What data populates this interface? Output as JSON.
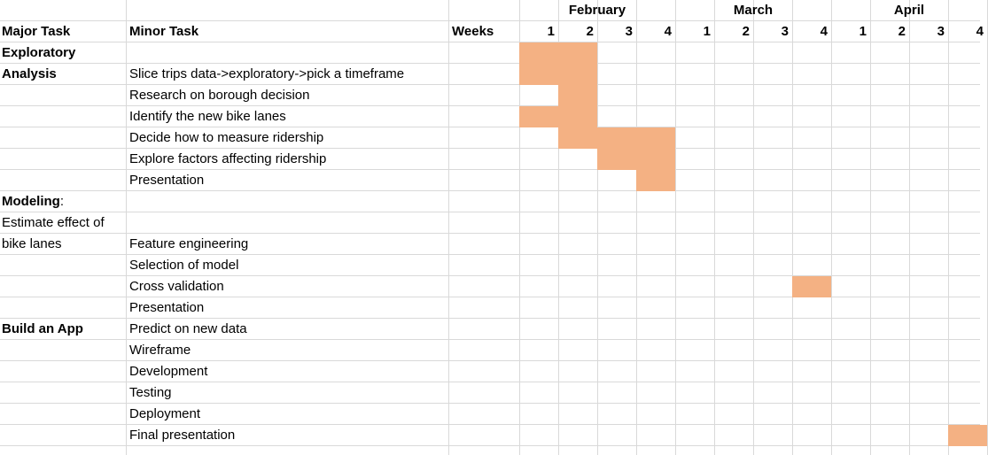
{
  "headers": {
    "major_task": "Major Task",
    "minor_task": "Minor Task",
    "weeks": "Weeks",
    "months": [
      "February",
      "March",
      "April"
    ],
    "week_numbers": [
      "1",
      "2",
      "3",
      "4",
      "1",
      "2",
      "3",
      "4",
      "1",
      "2",
      "3",
      "4"
    ]
  },
  "major_tasks": [
    {
      "lines": [
        "Exploratory",
        "Analysis"
      ],
      "bold": [
        true,
        true
      ]
    },
    {
      "lines": [
        "Modeling",
        ":"
      ],
      "bold": [
        true,
        false
      ]
    },
    {
      "lines": [
        "Estimate effect of"
      ],
      "bold": [
        false
      ]
    },
    {
      "lines": [
        "bike lanes"
      ],
      "bold": [
        false
      ]
    },
    {
      "lines": [
        "Build an App"
      ],
      "bold": [
        true
      ]
    }
  ],
  "rows": [
    {
      "minor": "",
      "major": "Exploratory",
      "major_bold": true,
      "bars": [
        [
          1,
          2
        ]
      ]
    },
    {
      "minor": "Slice trips data->exploratory->pick a timeframe",
      "major": "Analysis",
      "major_bold": true,
      "bars": [
        [
          1,
          2
        ]
      ]
    },
    {
      "minor": "Research on borough decision",
      "major": "",
      "bars": [
        [
          2,
          2
        ]
      ]
    },
    {
      "minor": "Identify the new bike lanes",
      "major": "",
      "bars": [
        [
          1,
          2
        ]
      ]
    },
    {
      "minor": "Decide how to measure ridership",
      "major": "",
      "bars": [
        [
          2,
          4
        ]
      ]
    },
    {
      "minor": "Explore factors affecting ridership",
      "major": "",
      "bars": [
        [
          3,
          4
        ]
      ]
    },
    {
      "minor": "Presentation",
      "major": "",
      "bars": [
        [
          4,
          4
        ]
      ]
    },
    {
      "minor": "",
      "major": "Modeling:",
      "major_bold": true,
      "bars": []
    },
    {
      "minor": "",
      "major": "Estimate effect of",
      "major_bold": false,
      "bars": []
    },
    {
      "minor": "Feature engineering",
      "major": "bike lanes",
      "major_bold": false,
      "bars": []
    },
    {
      "minor": "Selection of model",
      "major": "",
      "bars": []
    },
    {
      "minor": "Cross validation",
      "major": "",
      "bars": [
        [
          8,
          8
        ]
      ]
    },
    {
      "minor": "Presentation",
      "major": "",
      "bars": []
    },
    {
      "minor": "Predict on new data",
      "major": "Build an App",
      "major_bold": true,
      "bars": []
    },
    {
      "minor": "Wireframe",
      "major": "",
      "bars": []
    },
    {
      "minor": "Development",
      "major": "",
      "bars": []
    },
    {
      "minor": "Testing",
      "major": "",
      "bars": []
    },
    {
      "minor": "Deployment",
      "major": "",
      "bars": []
    },
    {
      "minor": "Final presentation",
      "major": "",
      "bars": [
        [
          12,
          12
        ]
      ]
    }
  ],
  "colors": {
    "bar": "#f4b183",
    "gridline": "#d9d9d9"
  }
}
